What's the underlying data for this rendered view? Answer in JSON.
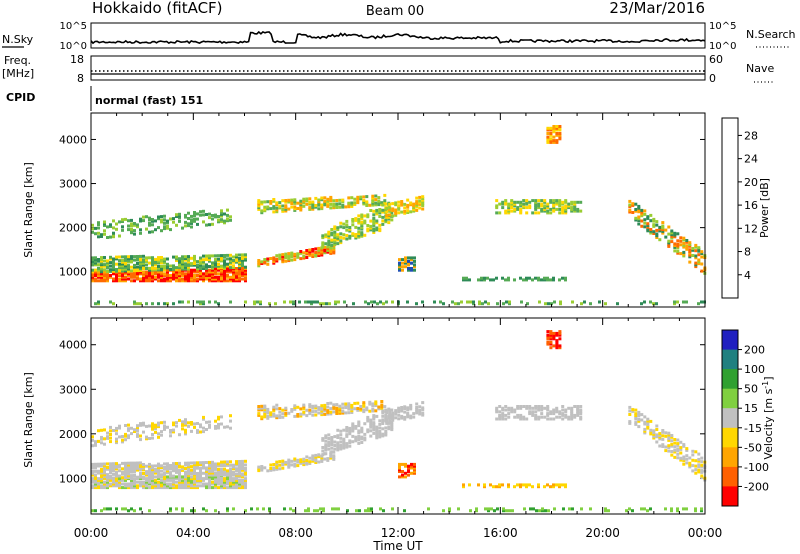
{
  "header": {
    "station": "Hokkaido (fitACF)",
    "beam": "Beam 00",
    "date": "23/Mar/2016"
  },
  "noise_panel": {
    "left_label": "N.Sky",
    "right_label": "N.Search",
    "ticks_left": [
      "10^5",
      "10^0"
    ],
    "ticks_right": [
      "10^5",
      "10^0"
    ]
  },
  "freq_panel": {
    "left_label_line1": "Freq.",
    "left_label_line2": "[MHz]",
    "right_label": "Nave",
    "ticks_left": [
      "18",
      "8"
    ],
    "ticks_right": [
      "60",
      "0"
    ]
  },
  "cpid_panel": {
    "label": "CPID",
    "value": "normal (fast) 151"
  },
  "colors": {
    "power": [
      "#0000ff",
      "#1f4fb4",
      "#2e8b57",
      "#55aa55",
      "#9acd32",
      "#ffd700",
      "#ffa500",
      "#ff6a00",
      "#ff0000"
    ],
    "velocity": [
      "#2020c0",
      "#208080",
      "#30a030",
      "#80d040",
      "#c0c0c0",
      "#ffd700",
      "#ffa500",
      "#ff6000",
      "#ff0000"
    ]
  },
  "chart_data": [
    {
      "type": "heatmap",
      "name": "power",
      "ylabel": "Slant Range [km]",
      "yticks": [
        "1000",
        "2000",
        "3000",
        "4000"
      ],
      "ylim": [
        200,
        4600
      ],
      "colorbar_label": "Power [dB]",
      "colorbar_ticks": [
        "4",
        "8",
        "12",
        "16",
        "20",
        "24",
        "28"
      ],
      "colorbar_range": [
        0,
        31
      ]
    },
    {
      "type": "heatmap",
      "name": "velocity",
      "ylabel": "Slant Range [km]",
      "yticks": [
        "1000",
        "2000",
        "3000",
        "4000"
      ],
      "ylim": [
        200,
        4600
      ],
      "colorbar_label": "Velocity [m s",
      "colorbar_label_sup": "-1",
      "colorbar_label_end": "]",
      "colorbar_ticks": [
        "200",
        "100",
        "50",
        "15",
        "-15",
        "-50",
        "-100",
        "-200"
      ],
      "colorbar_range": [
        -250,
        250
      ]
    }
  ],
  "time_axis": {
    "label": "Time UT",
    "ticks": [
      "00:00",
      "04:00",
      "08:00",
      "12:00",
      "16:00",
      "20:00",
      "00:00"
    ],
    "range_hours": [
      0,
      24
    ]
  }
}
